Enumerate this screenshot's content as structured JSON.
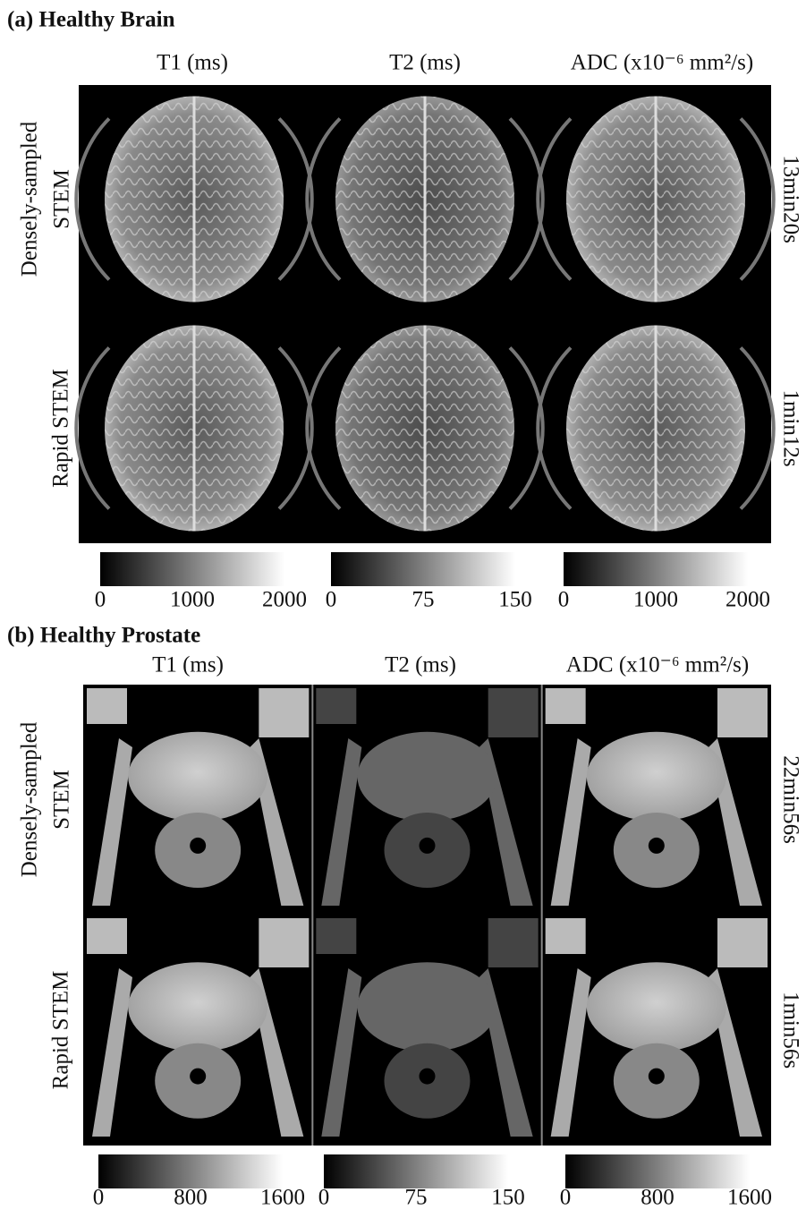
{
  "panels": [
    {
      "title": "(a) Healthy Brain",
      "columns": [
        "T1 (ms)",
        "T2 (ms)",
        "ADC (x10⁻⁶ mm²/s)"
      ],
      "rows": [
        {
          "label": [
            "Densely-sampled",
            "STEM"
          ],
          "time": "13min20s"
        },
        {
          "label": [
            "Rapid STEM"
          ],
          "time": "1min12s"
        }
      ],
      "colorbars": [
        [
          0,
          1000,
          2000
        ],
        [
          0,
          75,
          150
        ],
        [
          0,
          1000,
          2000
        ]
      ]
    },
    {
      "title": "(b) Healthy Prostate",
      "columns": [
        "T1 (ms)",
        "T2 (ms)",
        "ADC (x10⁻⁶ mm²/s)"
      ],
      "rows": [
        {
          "label": [
            "Densely-sampled",
            "STEM"
          ],
          "time": "22min56s"
        },
        {
          "label": [
            "Rapid STEM"
          ],
          "time": "1min56s"
        }
      ],
      "colorbars": [
        [
          0,
          800,
          1600
        ],
        [
          0,
          75,
          150
        ],
        [
          0,
          800,
          1600
        ]
      ]
    }
  ]
}
